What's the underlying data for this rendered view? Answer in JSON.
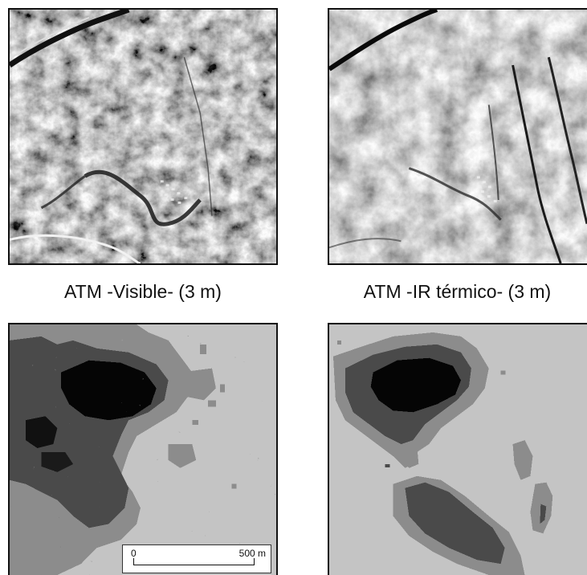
{
  "captions": {
    "top_left": "ATM -Visible- (3 m)",
    "top_right": "ATM -IR térmico- (3 m)"
  },
  "scale_bar": {
    "start_label": "0",
    "end_label": "500 m"
  },
  "images": {
    "top_left": "grayscale aerial visible-band image",
    "top_right": "grayscale aerial thermal-infrared image",
    "bottom_left": "classified map with four gray levels",
    "bottom_right": "classified map with four gray levels"
  },
  "palette": {
    "light": "#c4c4c4",
    "mid": "#8c8c8c",
    "dark": "#4a4a4a",
    "black": "#050505"
  }
}
